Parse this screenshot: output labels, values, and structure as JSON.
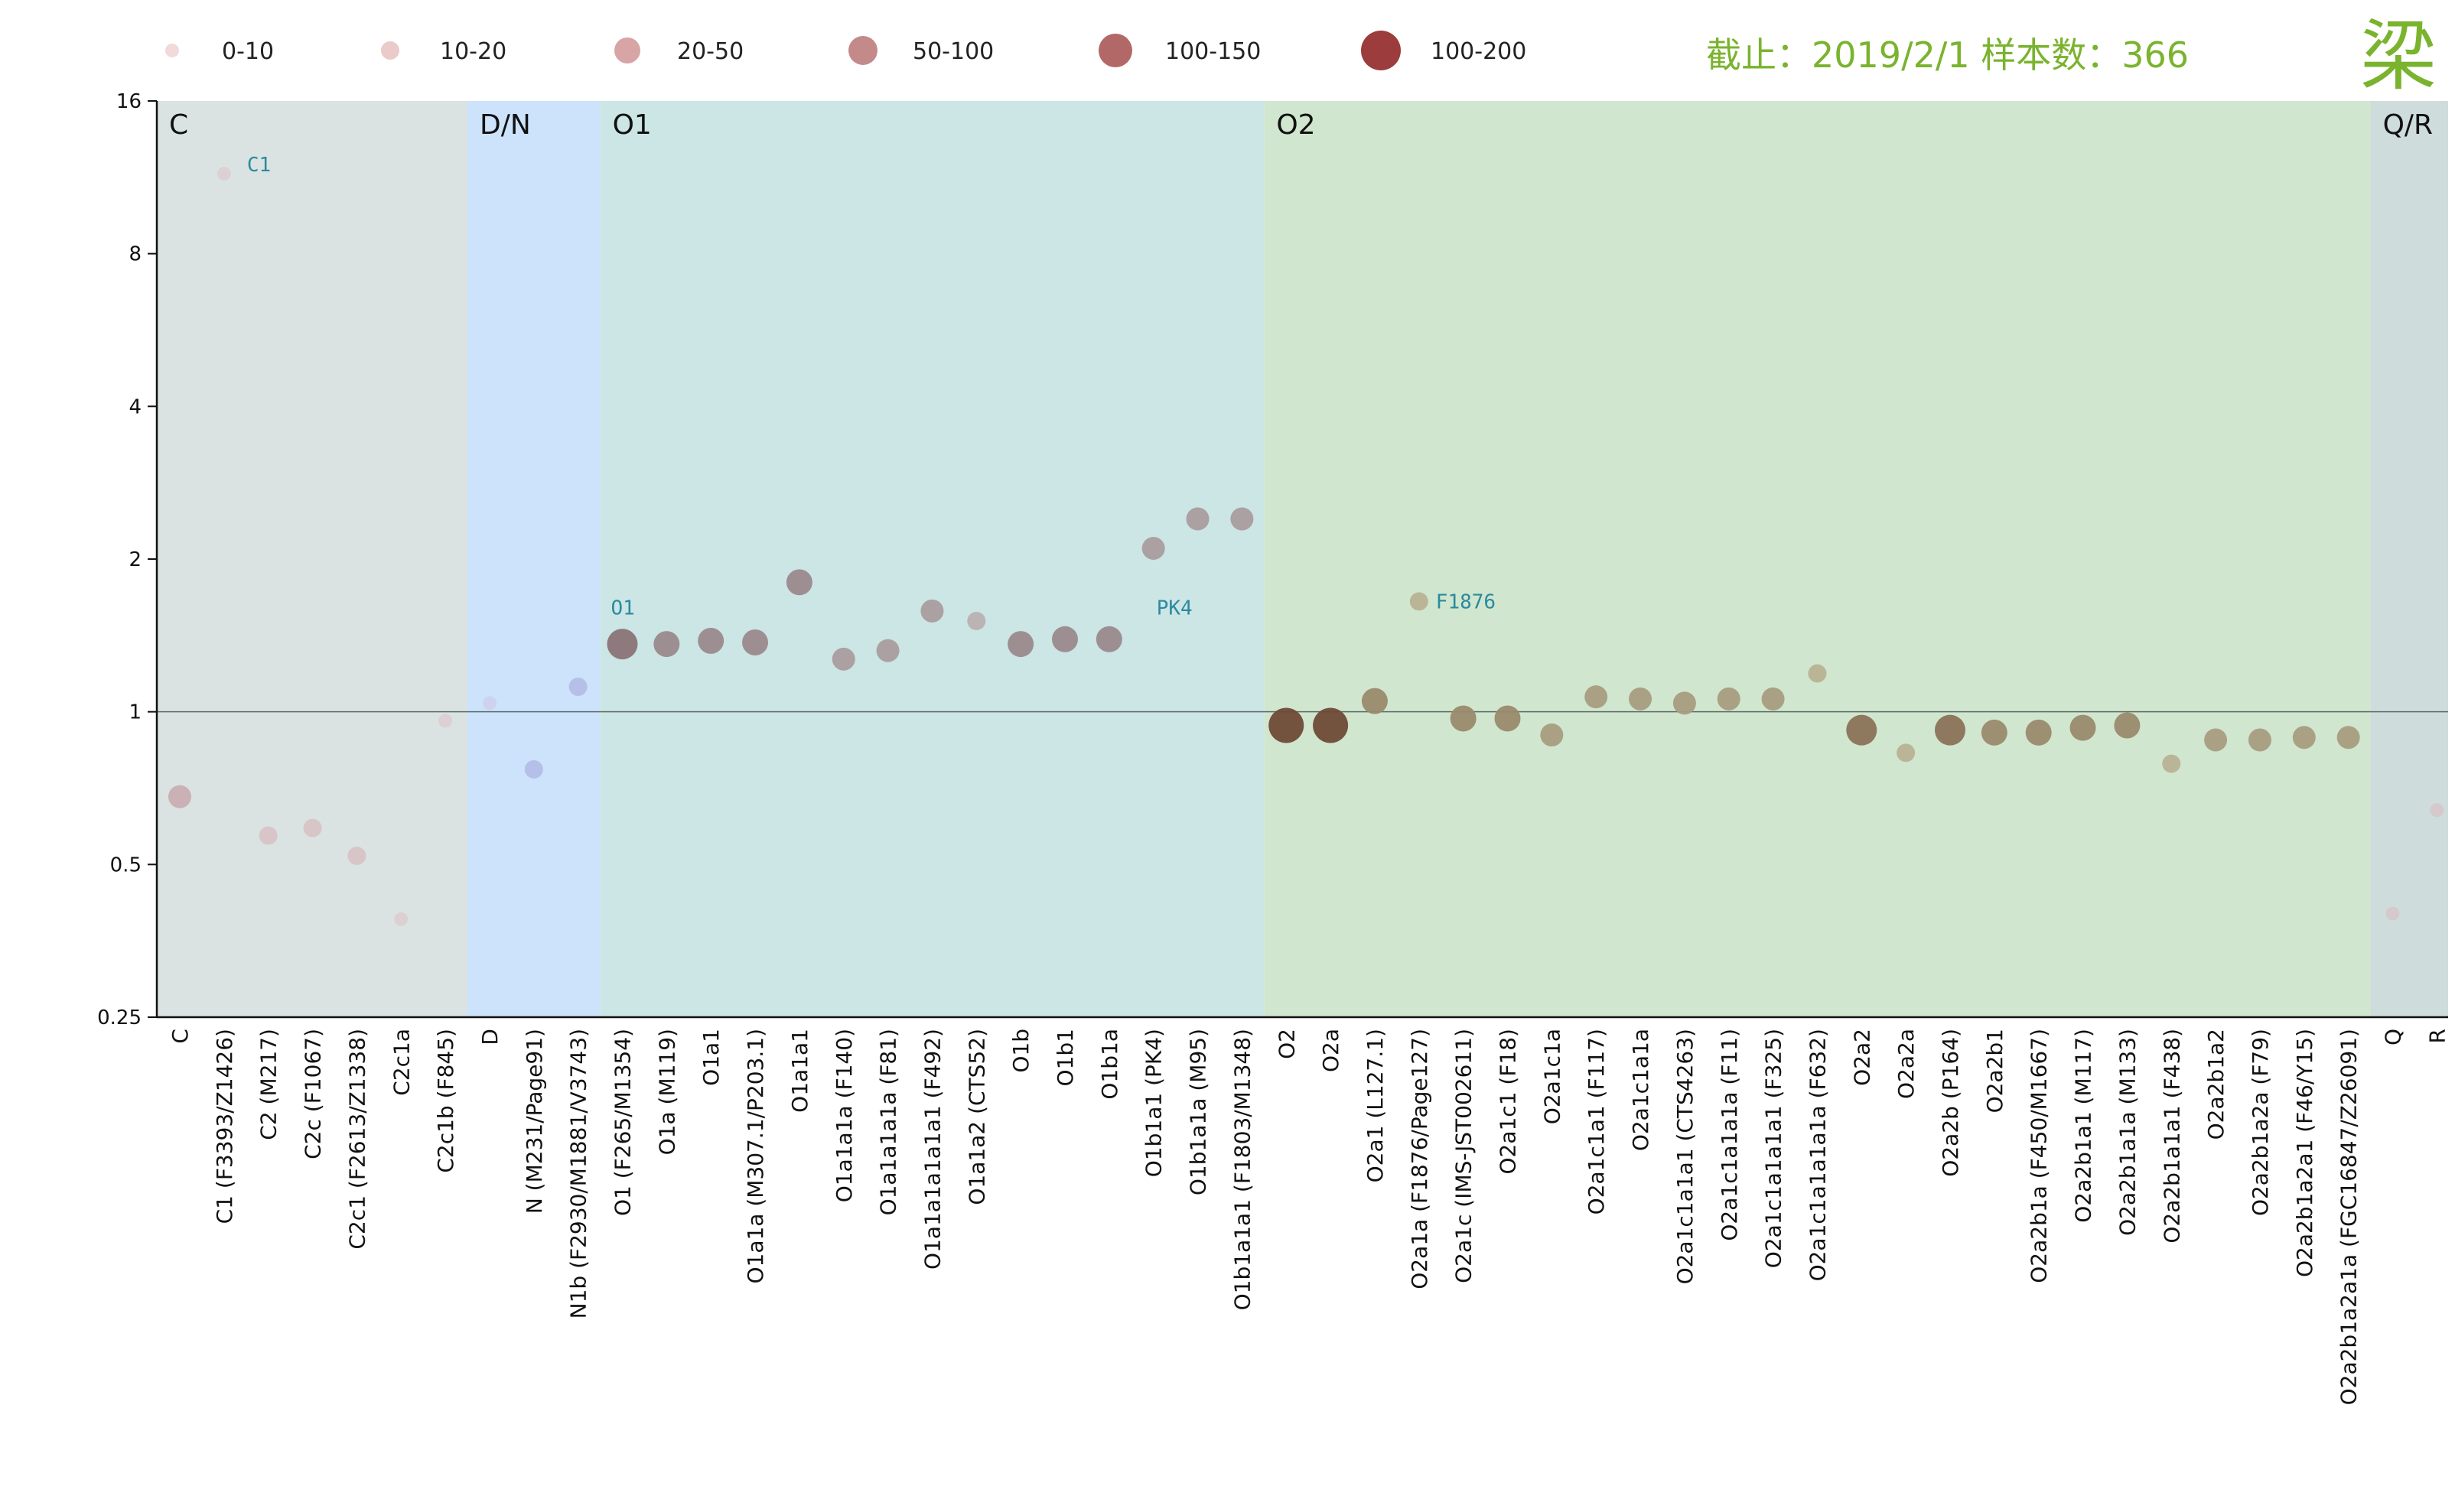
{
  "info": {
    "text": "截止：2019/2/1  样本数：366",
    "logo": "梁",
    "color": "#7ab32e"
  },
  "legend": [
    {
      "label": "0-10",
      "color": "#f2dada"
    },
    {
      "label": "10-20",
      "color": "#ebcaca"
    },
    {
      "label": "20-50",
      "color": "#d7a5a5"
    },
    {
      "label": "50-100",
      "color": "#c48a8a"
    },
    {
      "label": "100-150",
      "color": "#b36868"
    },
    {
      "label": "100-200",
      "color": "#9c3c3c"
    }
  ],
  "chart_data": {
    "type": "scatter",
    "yscale": "log2",
    "ylim": [
      0.25,
      16
    ],
    "yticks": [
      "16",
      "8",
      "4",
      "2",
      "1",
      "0.5",
      "0.25"
    ],
    "reference_line": 1,
    "bands": [
      {
        "label": "C",
        "from": "C",
        "to": "C2c1b (F845)",
        "color": "#dae3e2"
      },
      {
        "label": "D/N",
        "from": "D",
        "to": "N1b (F2930/M1881/V3743)",
        "color": "#cce3fb"
      },
      {
        "label": "O1",
        "from": "O1 (F265/M1354)",
        "to": "O1b1a1a1 (F1803/M1348)",
        "color": "#cce5e5"
      },
      {
        "label": "O2",
        "from": "O2",
        "to": "O2a2b1a2a1a (FGC16847/Z26091)",
        "color": "#d0e6cf"
      },
      {
        "label": "Q/R",
        "from": "Q",
        "to": "R",
        "color": "#cfdcdc"
      }
    ],
    "annotations": [
      {
        "text": "C1",
        "category": "C1 (F3393/Z1426)",
        "y": 12,
        "color": "#2b8a9e"
      },
      {
        "text": "O1",
        "category": "O1 (F265/M1354)",
        "y": 1.6,
        "color": "#2b8a9e"
      },
      {
        "text": "PK4",
        "category": "O1b1a1 (PK4)",
        "y": 1.8,
        "color": "#2b8a9e"
      },
      {
        "text": "F1876",
        "category": "O2a1a (F1876/Page127)",
        "y": 1.65,
        "color": "#2b8a9e"
      }
    ],
    "points": [
      {
        "category": "C",
        "y": 0.68,
        "size_class": 3
      },
      {
        "category": "C1 (F3393/Z1426)",
        "y": 11.5,
        "size_class": 1
      },
      {
        "category": "C2 (M217)",
        "y": 0.57,
        "size_class": 2
      },
      {
        "category": "C2c (F1067)",
        "y": 0.59,
        "size_class": 2
      },
      {
        "category": "C2c1 (F2613/Z1338)",
        "y": 0.52,
        "size_class": 2
      },
      {
        "category": "C2c1a",
        "y": 0.39,
        "size_class": 1
      },
      {
        "category": "C2c1b (F845)",
        "y": 0.96,
        "size_class": 1
      },
      {
        "category": "D",
        "y": 1.04,
        "size_class": 1
      },
      {
        "category": "N (M231/Page91)",
        "y": 0.77,
        "size_class": 2
      },
      {
        "category": "N1b (F2930/M1881/V3743)",
        "y": 1.12,
        "size_class": 2
      },
      {
        "category": "O1 (F265/M1354)",
        "y": 1.36,
        "size_class": 5
      },
      {
        "category": "O1a (M119)",
        "y": 1.36,
        "size_class": 4
      },
      {
        "category": "O1a1",
        "y": 1.38,
        "size_class": 4
      },
      {
        "category": "O1a1a (M307.1/P203.1)",
        "y": 1.37,
        "size_class": 4
      },
      {
        "category": "O1a1a1",
        "y": 1.8,
        "size_class": 4
      },
      {
        "category": "O1a1a1a (F140)",
        "y": 1.27,
        "size_class": 3
      },
      {
        "category": "O1a1a1a1a (F81)",
        "y": 1.32,
        "size_class": 3
      },
      {
        "category": "O1a1a1a1a1a1 (F492)",
        "y": 1.58,
        "size_class": 3
      },
      {
        "category": "O1a1a2 (CTS52)",
        "y": 1.51,
        "size_class": 2
      },
      {
        "category": "O1b",
        "y": 1.36,
        "size_class": 4
      },
      {
        "category": "O1b1",
        "y": 1.39,
        "size_class": 4
      },
      {
        "category": "O1b1a",
        "y": 1.39,
        "size_class": 4
      },
      {
        "category": "O1b1a1 (PK4)",
        "y": 2.1,
        "size_class": 3
      },
      {
        "category": "O1b1a1a (M95)",
        "y": 2.4,
        "size_class": 3
      },
      {
        "category": "O1b1a1a1 (F1803/M1348)",
        "y": 2.4,
        "size_class": 3
      },
      {
        "category": "O2",
        "y": 0.94,
        "size_class": 6
      },
      {
        "category": "O2a",
        "y": 0.94,
        "size_class": 6
      },
      {
        "category": "O2a1 (L127.1)",
        "y": 1.05,
        "size_class": 4
      },
      {
        "category": "O2a1a (F1876/Page127)",
        "y": 1.65,
        "size_class": 2
      },
      {
        "category": "O2a1c (IMS-JST002611)",
        "y": 0.97,
        "size_class": 4
      },
      {
        "category": "O2a1c1 (F18)",
        "y": 0.97,
        "size_class": 4
      },
      {
        "category": "O2a1c1a",
        "y": 0.9,
        "size_class": 3
      },
      {
        "category": "O2a1c1a1 (F117)",
        "y": 1.07,
        "size_class": 3
      },
      {
        "category": "O2a1c1a1a",
        "y": 1.06,
        "size_class": 3
      },
      {
        "category": "O2a1c1a1a1 (CTS4263)",
        "y": 1.04,
        "size_class": 3
      },
      {
        "category": "O2a1c1a1a1a (F11)",
        "y": 1.06,
        "size_class": 3
      },
      {
        "category": "O2a1c1a1a1a1 (F325)",
        "y": 1.06,
        "size_class": 3
      },
      {
        "category": "O2a1c1a1a1a1a (F632)",
        "y": 1.19,
        "size_class": 2
      },
      {
        "category": "O2a2",
        "y": 0.92,
        "size_class": 5
      },
      {
        "category": "O2a2a",
        "y": 0.83,
        "size_class": 2
      },
      {
        "category": "O2a2b (P164)",
        "y": 0.92,
        "size_class": 5
      },
      {
        "category": "O2a2b1",
        "y": 0.91,
        "size_class": 4
      },
      {
        "category": "O2a2b1a (F450/M1667)",
        "y": 0.91,
        "size_class": 4
      },
      {
        "category": "O2a2b1a1 (M117)",
        "y": 0.93,
        "size_class": 4
      },
      {
        "category": "O2a2b1a1a (M133)",
        "y": 0.94,
        "size_class": 4
      },
      {
        "category": "O2a2b1a1a1 (F438)",
        "y": 0.79,
        "size_class": 2
      },
      {
        "category": "O2a2b1a2",
        "y": 0.88,
        "size_class": 3
      },
      {
        "category": "O2a2b1a2a (F79)",
        "y": 0.88,
        "size_class": 3
      },
      {
        "category": "O2a2b1a2a1 (F46/Y15)",
        "y": 0.89,
        "size_class": 3
      },
      {
        "category": "O2a2b1a2a1a (FGC16847/Z26091)",
        "y": 0.89,
        "size_class": 3
      },
      {
        "category": "Q",
        "y": 0.4,
        "size_class": 1
      },
      {
        "category": "R",
        "y": 0.64,
        "size_class": 1
      }
    ]
  }
}
